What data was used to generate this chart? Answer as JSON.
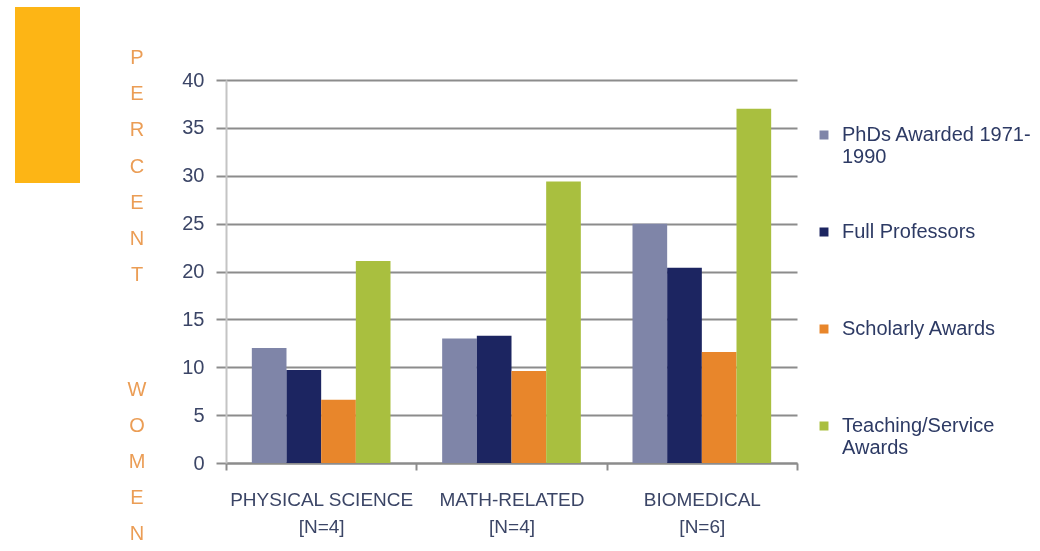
{
  "chart_data": {
    "type": "bar",
    "ylabel": "PERCENT WOMEN",
    "categories": [
      "PHYSICAL SCIENCE\n[N=4]",
      "MATH-RELATED\n[N=4]",
      "BIOMEDICAL\n[N=6]"
    ],
    "series": [
      {
        "name": "PhDs Awarded 1971-1990",
        "color": "#7f85a8",
        "values": [
          12,
          13,
          25
        ]
      },
      {
        "name": "Full Professors",
        "color": "#1c2561",
        "values": [
          9.7,
          13.3,
          20.4
        ]
      },
      {
        "name": "Scholarly Awards",
        "color": "#e8862b",
        "values": [
          6.6,
          9.6,
          11.6
        ]
      },
      {
        "name": "Teaching/Service Awards",
        "color": "#a9bf3f",
        "values": [
          21.1,
          29.4,
          37
        ]
      }
    ],
    "ylim": [
      0,
      40
    ],
    "yticks": [
      0,
      5,
      10,
      15,
      20,
      25,
      30,
      35,
      40
    ],
    "grid": "y",
    "legend": "right"
  }
}
